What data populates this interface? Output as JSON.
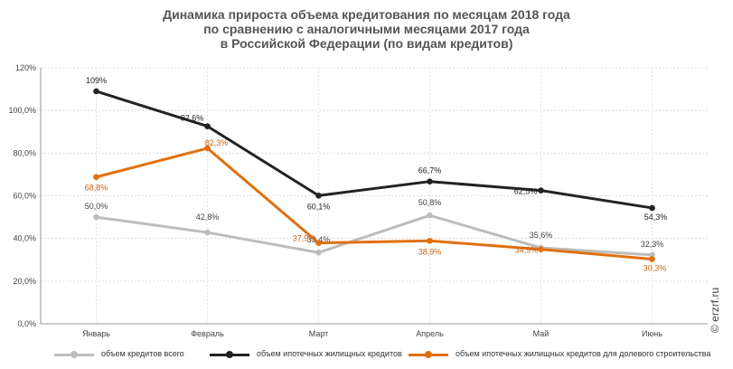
{
  "title_lines": [
    "Динамика прироста объема кредитования по месяцам 2018 года",
    "по сравнению с аналогичными месяцами 2017 года",
    "в Российской Федерации (по видам кредитов)"
  ],
  "watermark": "© erzrf.ru",
  "chart_data": {
    "type": "line",
    "categories": [
      "Январь",
      "Февраль",
      "Март",
      "Апрель",
      "Май",
      "Июнь"
    ],
    "ylim": [
      0,
      120
    ],
    "yticks": [
      "0,0%",
      "20,0%",
      "40,0%",
      "60,0%",
      "80,0%",
      "100,0%",
      "120%"
    ],
    "grid": true,
    "legend": "bottom",
    "series": [
      {
        "name": "объем кредитов всего",
        "color": "#bdbdbd",
        "values": [
          50.0,
          42.8,
          33.4,
          50.8,
          35.6,
          32.3
        ],
        "labels": [
          "50,0%",
          "42,8%",
          "33,4%",
          "50,8%",
          "35,6%",
          "32,3%"
        ]
      },
      {
        "name": "объем ипотечных жилищных кредитов",
        "color": "#222222",
        "values": [
          109,
          92.6,
          60.1,
          66.7,
          62.5,
          54.3
        ],
        "labels": [
          "109%",
          "92,6%",
          "60,1%",
          "66,7%",
          "62,5%",
          "54,3%"
        ]
      },
      {
        "name": "объем ипотечных жилищных кредитов для долевого строительства",
        "color": "#e07010",
        "values": [
          68.8,
          82.3,
          37.9,
          38.9,
          34.9,
          30.3
        ],
        "labels": [
          "68,8%",
          "82,3%",
          "37,9%",
          "38,9%",
          "34,9%",
          "30,3%"
        ]
      }
    ]
  }
}
